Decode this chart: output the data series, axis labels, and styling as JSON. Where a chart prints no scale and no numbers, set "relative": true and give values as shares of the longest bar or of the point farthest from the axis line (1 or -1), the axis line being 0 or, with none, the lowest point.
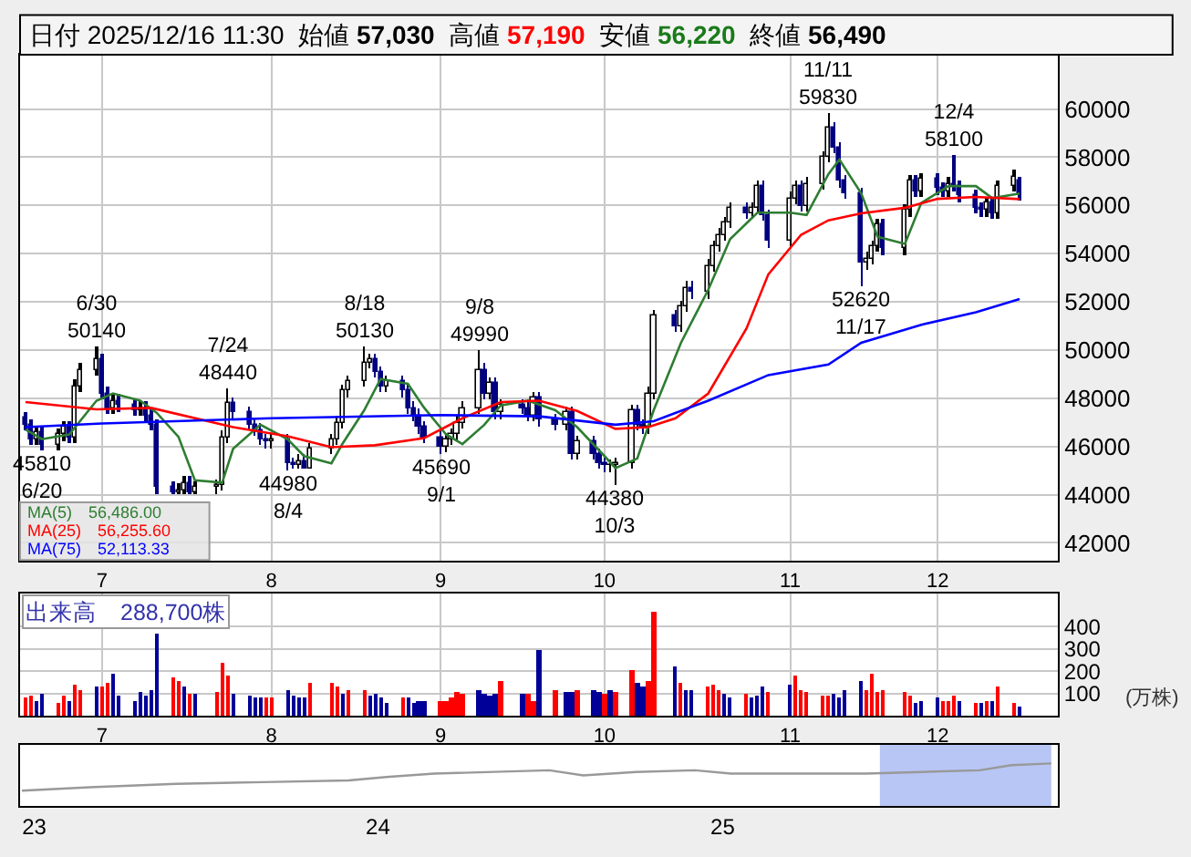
{
  "chart_data": [
    {
      "type": "candlestick",
      "title": "日付 2025/12/16 11:30",
      "annotations": [
        "始値",
        "57,030",
        "高値",
        "57,190",
        "安値",
        "56,220",
        "終値",
        "56,490",
        {
          "text": "45810\n6/20",
          "x": "2025-06-20",
          "y": 45810
        },
        {
          "text": "6/30\n50140",
          "x": "2025-06-30",
          "y": 50140
        },
        {
          "text": "7/24\n48440",
          "x": "2025-07-24",
          "y": 48440
        },
        {
          "text": "44980\n8/4",
          "x": "2025-08-04",
          "y": 44980
        },
        {
          "text": "8/18\n50130",
          "x": "2025-08-18",
          "y": 50130
        },
        {
          "text": "45690\n9/1",
          "x": "2025-09-01",
          "y": 45690
        },
        {
          "text": "9/8\n49990",
          "x": "2025-09-08",
          "y": 49990
        },
        {
          "text": "44380\n10/3",
          "x": "2025-10-03",
          "y": 44380
        },
        {
          "text": "11/11\n59830",
          "x": "2025-11-11",
          "y": 59830
        },
        {
          "text": "52620\n11/17",
          "x": "2025-11-17",
          "y": 52620
        },
        {
          "text": "12/4\n58100",
          "x": "2025-12-04",
          "y": 58100
        }
      ],
      "x": [
        "2025-06-17",
        "2025-06-18",
        "2025-06-19",
        "2025-06-20",
        "2025-06-23",
        "2025-06-24",
        "2025-06-25",
        "2025-06-26",
        "2025-06-27",
        "2025-06-30",
        "2025-07-01",
        "2025-07-02",
        "2025-07-03",
        "2025-07-04",
        "2025-07-07",
        "2025-07-08",
        "2025-07-09",
        "2025-07-10",
        "2025-07-11",
        "2025-07-14",
        "2025-07-15",
        "2025-07-16",
        "2025-07-17",
        "2025-07-18",
        "2025-07-22",
        "2025-07-23",
        "2025-07-24",
        "2025-07-25",
        "2025-07-28",
        "2025-07-29",
        "2025-07-30",
        "2025-07-31",
        "2025-08-01",
        "2025-08-04",
        "2025-08-05",
        "2025-08-06",
        "2025-08-07",
        "2025-08-08",
        "2025-08-12",
        "2025-08-13",
        "2025-08-14",
        "2025-08-15",
        "2025-08-18",
        "2025-08-19",
        "2025-08-20",
        "2025-08-21",
        "2025-08-22",
        "2025-08-25",
        "2025-08-26",
        "2025-08-27",
        "2025-08-28",
        "2025-08-29",
        "2025-09-01",
        "2025-09-02",
        "2025-09-03",
        "2025-09-04",
        "2025-09-05",
        "2025-09-08",
        "2025-09-09",
        "2025-09-10",
        "2025-09-11",
        "2025-09-12",
        "2025-09-16",
        "2025-09-17",
        "2025-09-18",
        "2025-09-19",
        "2025-09-22",
        "2025-09-24",
        "2025-09-25",
        "2025-09-26",
        "2025-09-29",
        "2025-09-30",
        "2025-10-01",
        "2025-10-02",
        "2025-10-03",
        "2025-10-06",
        "2025-10-07",
        "2025-10-08",
        "2025-10-09",
        "2025-10-10",
        "2025-10-14",
        "2025-10-15",
        "2025-10-16",
        "2025-10-17",
        "2025-10-20",
        "2025-10-21",
        "2025-10-22",
        "2025-10-23",
        "2025-10-24",
        "2025-10-27",
        "2025-10-28",
        "2025-10-29",
        "2025-10-30",
        "2025-10-31",
        "2025-11-04",
        "2025-11-05",
        "2025-11-06",
        "2025-11-07",
        "2025-11-10",
        "2025-11-11",
        "2025-11-12",
        "2025-11-13",
        "2025-11-14",
        "2025-11-17",
        "2025-11-18",
        "2025-11-19",
        "2025-11-20",
        "2025-11-21",
        "2025-11-25",
        "2025-11-26",
        "2025-11-27",
        "2025-11-28",
        "2025-12-01",
        "2025-12-02",
        "2025-12-03",
        "2025-12-04",
        "2025-12-05",
        "2025-12-08",
        "2025-12-09",
        "2025-12-10",
        "2025-12-11",
        "2025-12-12",
        "2025-12-15",
        "2025-12-16"
      ],
      "ohlc": [
        [
          47200,
          47450,
          46650,
          46900
        ],
        [
          46900,
          47150,
          46050,
          46300
        ],
        [
          46300,
          46850,
          46050,
          46600
        ],
        [
          46600,
          46850,
          45810,
          46100
        ],
        [
          46100,
          46750,
          45850,
          46500
        ],
        [
          46500,
          47050,
          46250,
          46800
        ],
        [
          46800,
          47050,
          46150,
          46400
        ],
        [
          46400,
          48750,
          46150,
          48500
        ],
        [
          48500,
          49450,
          48250,
          49200
        ],
        [
          49200,
          50140,
          48950,
          49600
        ],
        [
          49600,
          49850,
          47950,
          48200
        ],
        [
          48200,
          48450,
          47350,
          47600
        ],
        [
          47600,
          48150,
          47350,
          47900
        ],
        [
          47900,
          48150,
          47450,
          47700
        ],
        [
          47700,
          47950,
          47250,
          47500
        ],
        [
          47500,
          47850,
          47250,
          47600
        ],
        [
          47600,
          47850,
          47050,
          47300
        ],
        [
          47300,
          47550,
          46650,
          46900
        ],
        [
          46900,
          47150,
          44050,
          44300
        ],
        [
          44300,
          44550,
          44000,
          44100
        ],
        [
          44100,
          44450,
          44000,
          44200
        ],
        [
          44200,
          44750,
          44000,
          44500
        ],
        [
          44500,
          44750,
          44000,
          44100
        ],
        [
          44100,
          44550,
          44000,
          44300
        ],
        [
          44300,
          44650,
          44050,
          44400
        ],
        [
          44400,
          46650,
          44150,
          46400
        ],
        [
          46400,
          48440,
          46150,
          47800
        ],
        [
          47800,
          48050,
          47150,
          47400
        ],
        [
          47400,
          47650,
          46650,
          46900
        ],
        [
          46900,
          47150,
          46450,
          46700
        ],
        [
          46700,
          46950,
          46050,
          46300
        ],
        [
          46300,
          46550,
          45950,
          46200
        ],
        [
          46200,
          46550,
          45950,
          46300
        ],
        [
          46300,
          46550,
          44980,
          45300
        ],
        [
          45300,
          45550,
          45050,
          45200
        ],
        [
          45200,
          45650,
          45050,
          45400
        ],
        [
          45400,
          45650,
          45050,
          45100
        ],
        [
          45100,
          46150,
          45050,
          45900
        ],
        [
          45900,
          46550,
          45650,
          46300
        ],
        [
          46300,
          47250,
          46050,
          47000
        ],
        [
          47000,
          48550,
          46750,
          48300
        ],
        [
          48300,
          48950,
          48050,
          48700
        ],
        [
          48700,
          50130,
          48450,
          49500
        ],
        [
          49500,
          49850,
          49250,
          49600
        ],
        [
          49600,
          49850,
          48850,
          49100
        ],
        [
          49100,
          49350,
          48250,
          48500
        ],
        [
          48500,
          48950,
          48250,
          48700
        ],
        [
          48700,
          48950,
          48050,
          48300
        ],
        [
          48300,
          48550,
          47350,
          47600
        ],
        [
          47600,
          47850,
          47050,
          47300
        ],
        [
          47300,
          47550,
          46550,
          46800
        ],
        [
          46800,
          47050,
          46150,
          46400
        ],
        [
          46400,
          46650,
          45690,
          46000
        ],
        [
          46000,
          46550,
          45750,
          46300
        ],
        [
          46300,
          46750,
          46050,
          46500
        ],
        [
          46500,
          47250,
          46250,
          47000
        ],
        [
          47000,
          47850,
          46750,
          47600
        ],
        [
          47600,
          49990,
          47350,
          49200
        ],
        [
          49200,
          49450,
          47950,
          48200
        ],
        [
          48200,
          48850,
          47950,
          48600
        ],
        [
          48600,
          48850,
          47150,
          47400
        ],
        [
          47400,
          47950,
          47150,
          47700
        ],
        [
          47700,
          47950,
          47350,
          47600
        ],
        [
          47600,
          47850,
          47050,
          47300
        ],
        [
          47300,
          48250,
          47050,
          48000
        ],
        [
          48000,
          48250,
          46850,
          47100
        ],
        [
          47100,
          47350,
          46650,
          46900
        ],
        [
          46900,
          47650,
          46650,
          47400
        ],
        [
          47400,
          47650,
          45450,
          45700
        ],
        [
          45700,
          46450,
          45450,
          46200
        ],
        [
          46200,
          46450,
          45450,
          45700
        ],
        [
          45700,
          45950,
          45050,
          45300
        ],
        [
          45300,
          45550,
          44950,
          45200
        ],
        [
          45200,
          45450,
          44950,
          45200
        ],
        [
          45200,
          45550,
          44380,
          45300
        ],
        [
          45300,
          47750,
          45050,
          47500
        ],
        [
          47500,
          47750,
          46650,
          46900
        ],
        [
          46900,
          47150,
          46550,
          46800
        ],
        [
          46800,
          48450,
          46550,
          48200
        ],
        [
          48200,
          51650,
          47950,
          51400
        ],
        [
          51400,
          51650,
          50750,
          51000
        ],
        [
          51000,
          52050,
          50750,
          51800
        ],
        [
          51800,
          52850,
          51550,
          52600
        ],
        [
          52600,
          52850,
          52150,
          52400
        ],
        [
          52400,
          53750,
          52150,
          53500
        ],
        [
          53500,
          54550,
          53250,
          54300
        ],
        [
          54300,
          55050,
          54050,
          54800
        ],
        [
          54800,
          55550,
          54550,
          55300
        ],
        [
          55300,
          56150,
          55050,
          55900
        ],
        [
          55900,
          56150,
          55450,
          55700
        ],
        [
          55700,
          56150,
          55450,
          55900
        ],
        [
          55900,
          57050,
          55650,
          56800
        ],
        [
          56800,
          57050,
          55350,
          55600
        ],
        [
          55600,
          55850,
          54250,
          54500
        ],
        [
          54500,
          56550,
          54250,
          56300
        ],
        [
          56300,
          57050,
          56050,
          56800
        ],
        [
          56800,
          57050,
          55750,
          56000
        ],
        [
          56000,
          57150,
          55750,
          56900
        ],
        [
          56900,
          58250,
          56650,
          58000
        ],
        [
          58000,
          59830,
          57750,
          59200
        ],
        [
          59200,
          59450,
          58150,
          58400
        ],
        [
          58400,
          58650,
          56750,
          57000
        ],
        [
          57000,
          57250,
          56250,
          56500
        ],
        [
          56500,
          56750,
          52620,
          53600
        ],
        [
          53600,
          54050,
          53350,
          53800
        ],
        [
          53800,
          54550,
          53550,
          54300
        ],
        [
          54300,
          55450,
          54050,
          55200
        ],
        [
          55200,
          55450,
          53950,
          54200
        ],
        [
          54200,
          56050,
          53950,
          55800
        ],
        [
          55800,
          57250,
          55550,
          57000
        ],
        [
          57000,
          57250,
          56350,
          56600
        ],
        [
          56600,
          57350,
          56350,
          57100
        ],
        [
          57100,
          57350,
          56450,
          56700
        ],
        [
          56700,
          56950,
          56350,
          56600
        ],
        [
          56600,
          57150,
          56350,
          56900
        ],
        [
          56900,
          58100,
          56550,
          56800
        ],
        [
          56800,
          57050,
          56150,
          56400
        ],
        [
          56400,
          56650,
          55650,
          55900
        ],
        [
          55900,
          56150,
          55550,
          55800
        ],
        [
          55800,
          56350,
          55550,
          56100
        ],
        [
          56100,
          56350,
          55450,
          55700
        ],
        [
          55700,
          57050,
          55450,
          56800
        ],
        [
          56800,
          57450,
          56550,
          57200
        ],
        [
          57030,
          57190,
          56220,
          56490
        ]
      ],
      "series": [
        {
          "type": "line",
          "name": "MA(5)　56,486.00",
          "color": "#2e7d32",
          "x": [
            "2025-06-17",
            "2025-06-20",
            "2025-06-25",
            "2025-06-30",
            "2025-07-03",
            "2025-07-08",
            "2025-07-11",
            "2025-07-15",
            "2025-07-18",
            "2025-07-23",
            "2025-07-25",
            "2025-07-30",
            "2025-08-04",
            "2025-08-07",
            "2025-08-12",
            "2025-08-14",
            "2025-08-18",
            "2025-08-21",
            "2025-08-26",
            "2025-08-29",
            "2025-09-02",
            "2025-09-05",
            "2025-09-09",
            "2025-09-12",
            "2025-09-17",
            "2025-09-22",
            "2025-09-26",
            "2025-10-01",
            "2025-10-03",
            "2025-10-07",
            "2025-10-10",
            "2025-10-15",
            "2025-10-20",
            "2025-10-24",
            "2025-10-29",
            "2025-11-04",
            "2025-11-07",
            "2025-11-11",
            "2025-11-13",
            "2025-11-17",
            "2025-11-20",
            "2025-11-25",
            "2025-11-28",
            "2025-12-03",
            "2025-12-08",
            "2025-12-11",
            "2025-12-16"
          ],
          "values": [
            46700,
            46300,
            46500,
            47900,
            48200,
            47900,
            47400,
            46400,
            44600,
            44500,
            45900,
            46900,
            46300,
            45600,
            45300,
            46100,
            47500,
            48800,
            48600,
            47600,
            46500,
            46100,
            46900,
            47700,
            47900,
            47500,
            46800,
            45600,
            45100,
            45500,
            47500,
            50300,
            52500,
            54600,
            55700,
            55700,
            55600,
            57300,
            57900,
            56500,
            54700,
            54400,
            56100,
            56800,
            56800,
            56300,
            56490
          ]
        },
        {
          "type": "line",
          "name": "MA(25)　56,255.60",
          "color": "#ff0000",
          "x": [
            "2025-06-17",
            "2025-06-30",
            "2025-07-10",
            "2025-07-25",
            "2025-08-04",
            "2025-08-12",
            "2025-08-20",
            "2025-08-29",
            "2025-09-05",
            "2025-09-12",
            "2025-09-19",
            "2025-09-26",
            "2025-10-03",
            "2025-10-09",
            "2025-10-14",
            "2025-10-20",
            "2025-10-27",
            "2025-10-31",
            "2025-11-06",
            "2025-11-11",
            "2025-11-17",
            "2025-11-25",
            "2025-12-01",
            "2025-12-08",
            "2025-12-16"
          ],
          "values": [
            47840,
            47540,
            47600,
            46800,
            46420,
            45970,
            46050,
            46350,
            47170,
            47840,
            47900,
            47470,
            46730,
            46800,
            47170,
            48200,
            50900,
            53140,
            54780,
            55380,
            55670,
            55900,
            56270,
            56350,
            56260
          ]
        },
        {
          "type": "line",
          "name": "MA(75)　52,113.33",
          "color": "#0000ff",
          "x": [
            "2025-06-17",
            "2025-07-01",
            "2025-08-01",
            "2025-09-01",
            "2025-09-19",
            "2025-10-03",
            "2025-10-10",
            "2025-10-20",
            "2025-10-31",
            "2025-11-11",
            "2025-11-17",
            "2025-11-28",
            "2025-12-08",
            "2025-12-16"
          ],
          "values": [
            46800,
            46950,
            47170,
            47300,
            47250,
            46900,
            47050,
            47900,
            48960,
            49400,
            50300,
            51050,
            51570,
            52110
          ]
        }
      ],
      "xlim": [
        "2025-06-16",
        "2025-12-23"
      ],
      "xticks": [
        {
          "value": "2025-07-01",
          "label": "7"
        },
        {
          "value": "2025-08-01",
          "label": "8"
        },
        {
          "value": "2025-09-01",
          "label": "9"
        },
        {
          "value": "2025-10-01",
          "label": "10"
        },
        {
          "value": "2025-11-04",
          "label": "11"
        },
        {
          "value": "2025-12-01",
          "label": "12"
        }
      ],
      "ylim": [
        41250,
        62250
      ],
      "yticks": [
        42000,
        44000,
        46000,
        48000,
        50000,
        52000,
        54000,
        56000,
        58000,
        60000
      ],
      "grid": true,
      "legend": "bottom left"
    },
    {
      "type": "bar",
      "title": "出来高　288,700株",
      "ylabel": "(万株)",
      "x": [
        "2025-06-17",
        "2025-06-18",
        "2025-06-19",
        "2025-06-20",
        "2025-06-23",
        "2025-06-24",
        "2025-06-25",
        "2025-06-26",
        "2025-06-27",
        "2025-06-30",
        "2025-07-01",
        "2025-07-02",
        "2025-07-03",
        "2025-07-04",
        "2025-07-07",
        "2025-07-08",
        "2025-07-09",
        "2025-07-10",
        "2025-07-11",
        "2025-07-14",
        "2025-07-15",
        "2025-07-16",
        "2025-07-17",
        "2025-07-18",
        "2025-07-22",
        "2025-07-23",
        "2025-07-24",
        "2025-07-25",
        "2025-07-28",
        "2025-07-29",
        "2025-07-30",
        "2025-07-31",
        "2025-08-01",
        "2025-08-04",
        "2025-08-05",
        "2025-08-06",
        "2025-08-07",
        "2025-08-08",
        "2025-08-12",
        "2025-08-13",
        "2025-08-14",
        "2025-08-15",
        "2025-08-18",
        "2025-08-19",
        "2025-08-20",
        "2025-08-21",
        "2025-08-22",
        "2025-08-25",
        "2025-08-26",
        "2025-08-27",
        "2025-08-28",
        "2025-08-29",
        "2025-09-01",
        "2025-09-02",
        "2025-09-03",
        "2025-09-04",
        "2025-09-05",
        "2025-09-08",
        "2025-09-09",
        "2025-09-10",
        "2025-09-11",
        "2025-09-12",
        "2025-09-16",
        "2025-09-17",
        "2025-09-18",
        "2025-09-19",
        "2025-09-22",
        "2025-09-24",
        "2025-09-25",
        "2025-09-26",
        "2025-09-29",
        "2025-09-30",
        "2025-10-01",
        "2025-10-02",
        "2025-10-03",
        "2025-10-06",
        "2025-10-07",
        "2025-10-08",
        "2025-10-09",
        "2025-10-10",
        "2025-10-14",
        "2025-10-15",
        "2025-10-16",
        "2025-10-17",
        "2025-10-20",
        "2025-10-21",
        "2025-10-22",
        "2025-10-23",
        "2025-10-24",
        "2025-10-27",
        "2025-10-28",
        "2025-10-29",
        "2025-10-30",
        "2025-10-31",
        "2025-11-04",
        "2025-11-05",
        "2025-11-06",
        "2025-11-07",
        "2025-11-10",
        "2025-11-11",
        "2025-11-12",
        "2025-11-13",
        "2025-11-14",
        "2025-11-17",
        "2025-11-18",
        "2025-11-19",
        "2025-11-20",
        "2025-11-21",
        "2025-11-25",
        "2025-11-26",
        "2025-11-27",
        "2025-11-28",
        "2025-12-01",
        "2025-12-02",
        "2025-12-03",
        "2025-12-04",
        "2025-12-05",
        "2025-12-08",
        "2025-12-09",
        "2025-12-10",
        "2025-12-11",
        "2025-12-12",
        "2025-12-15",
        "2025-12-16"
      ],
      "values": [
        80,
        90,
        70,
        100,
        60,
        90,
        70,
        140,
        120,
        130,
        130,
        150,
        190,
        90,
        70,
        110,
        90,
        120,
        370,
        170,
        160,
        130,
        100,
        100,
        110,
        240,
        180,
        100,
        90,
        80,
        80,
        80,
        80,
        120,
        90,
        80,
        80,
        150,
        150,
        130,
        100,
        120,
        120,
        90,
        100,
        80,
        60,
        80,
        80,
        60,
        70,
        70,
        70,
        70,
        80,
        110,
        100,
        120,
        100,
        90,
        100,
        160,
        100,
        100,
        70,
        300,
        120,
        110,
        110,
        120,
        120,
        110,
        100,
        120,
        110,
        210,
        150,
        130,
        160,
        470,
        220,
        150,
        120,
        120,
        130,
        140,
        120,
        100,
        80,
        100,
        80,
        90,
        130,
        110,
        140,
        180,
        120,
        110,
        90,
        90,
        100,
        80,
        120,
        160,
        120,
        190,
        110,
        120,
        110,
        90,
        60,
        70,
        80,
        70,
        70,
        90,
        70,
        60,
        60,
        70,
        70,
        130,
        60,
        40
      ],
      "colors": [
        "#ff0000",
        "#ff0000",
        "#000099",
        "#000099",
        "#ff0000",
        "#ff0000",
        "#000099",
        "#ff0000",
        "#ff0000",
        "#000099",
        "#ff0000",
        "#ff0000",
        "#000099",
        "#000099",
        "#000099",
        "#000099",
        "#000099",
        "#000099",
        "#000099",
        "#ff0000",
        "#ff0000",
        "#000099",
        "#ff0000",
        "#000099",
        "#ff0000",
        "#ff0000",
        "#ff0000",
        "#000099",
        "#000099",
        "#000099",
        "#000099",
        "#ff0000",
        "#ff0000",
        "#000099",
        "#000099",
        "#000099",
        "#000099",
        "#ff0000",
        "#ff0000",
        "#ff0000",
        "#000099",
        "#ff0000",
        "#ff0000",
        "#000099",
        "#000099",
        "#000099",
        "#000099",
        "#ff0000",
        "#000099",
        "#000099",
        "#000099",
        "#000099",
        "#ff0000",
        "#ff0000",
        "#ff0000",
        "#ff0000",
        "#ff0000",
        "#000099",
        "#000099",
        "#000099",
        "#000099",
        "#ff0000",
        "#000099",
        "#ff0000",
        "#ff0000",
        "#000099",
        "#ff0000",
        "#000099",
        "#000099",
        "#ff0000",
        "#000099",
        "#000099",
        "#ff0000",
        "#000099",
        "#ff0000",
        "#ff0000",
        "#000099",
        "#000099",
        "#ff0000",
        "#ff0000",
        "#000099",
        "#ff0000",
        "#000099",
        "#000099",
        "#ff0000",
        "#ff0000",
        "#ff0000",
        "#000099",
        "#000099",
        "#ff0000",
        "#000099",
        "#000099",
        "#000099",
        "#ff0000",
        "#000099",
        "#ff0000",
        "#ff0000",
        "#ff0000",
        "#ff0000",
        "#ff0000",
        "#000099",
        "#000099",
        "#000099",
        "#000099",
        "#ff0000",
        "#ff0000",
        "#ff0000",
        "#ff0000",
        "#ff0000",
        "#ff0000",
        "#000099",
        "#000099",
        "#000099",
        "#ff0000",
        "#ff0000",
        "#ff0000",
        "#000099",
        "#ff0000",
        "#000099",
        "#ff0000",
        "#000099",
        "#ff0000",
        "#ff0000",
        "#000099"
      ],
      "xlim": [
        "2025-06-16",
        "2025-12-23"
      ],
      "xticks": [
        {
          "value": "2025-07-01",
          "label": "7"
        },
        {
          "value": "2025-08-01",
          "label": "8"
        },
        {
          "value": "2025-09-01",
          "label": "9"
        },
        {
          "value": "2025-10-01",
          "label": "10"
        },
        {
          "value": "2025-11-04",
          "label": "11"
        },
        {
          "value": "2025-12-01",
          "label": "12"
        }
      ],
      "ylim": [
        0,
        550
      ],
      "yticks": [
        100,
        200,
        300,
        400
      ],
      "grid": true
    },
    {
      "type": "line",
      "relative": true,
      "color": "#999999",
      "x": [
        "2022-12-19",
        "2023-03-01",
        "2023-06-01",
        "2023-09-01",
        "2023-12-01",
        "2024-01-10",
        "2024-03-01",
        "2024-07-01",
        "2024-08-06",
        "2024-10-01",
        "2024-12-02",
        "2025-01-10",
        "2025-04-01",
        "2025-06-02",
        "2025-08-01",
        "2025-10-01",
        "2025-11-04",
        "2025-12-16"
      ],
      "values": [
        0.36,
        0.44,
        0.52,
        0.56,
        0.6,
        0.68,
        0.76,
        0.84,
        0.72,
        0.8,
        0.84,
        0.76,
        0.76,
        0.76,
        0.8,
        0.84,
        0.96,
        1
      ],
      "xlim": [
        "2022-12-17",
        "2025-12-23"
      ],
      "xticks": [
        {
          "value": "2023-01-01",
          "label": "23"
        },
        {
          "value": "2024-01-01",
          "label": "24"
        },
        {
          "value": "2025-01-01",
          "label": "25"
        }
      ],
      "bands": [
        {
          "axis": "x",
          "from": "2025-06-17",
          "to": "2025-12-16",
          "color": "#b8c6f5"
        }
      ]
    }
  ]
}
